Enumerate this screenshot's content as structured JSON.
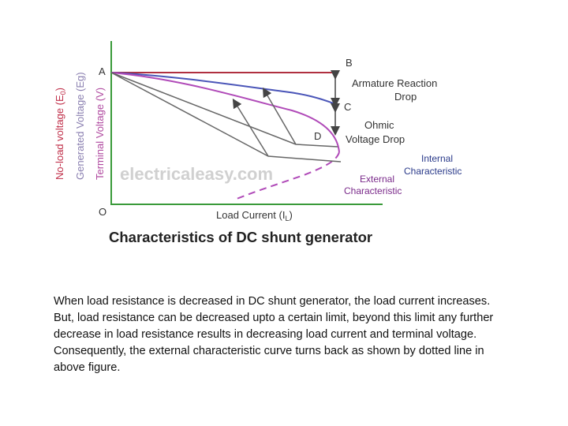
{
  "figure": {
    "title": "Characteristics of DC shunt generator",
    "watermark": "electricaleasy.com",
    "x_axis_label": "Load Current (I",
    "x_axis_sub": "L",
    "x_axis_close": ")",
    "y_axis_labels": [
      {
        "text": "No-load voltage (E",
        "sub": "0",
        "close": ")",
        "color": "#c0304a"
      },
      {
        "text": "Generated Voltage (Eg)",
        "color": "#8a7fb0"
      },
      {
        "text": "Terminal Voltage (V)",
        "color": "#b04aa0"
      }
    ],
    "points": {
      "A": "A",
      "B": "B",
      "C": "C",
      "D": "D",
      "O": "O"
    },
    "annotations": {
      "armature_line1": "Armature Reaction",
      "armature_line2": "Drop",
      "ohmic_line1": "Ohmic",
      "ohmic_line2": "Voltage Drop",
      "internal_line1": "Internal",
      "internal_line2": "Characteristic",
      "external_line1": "External",
      "external_line2": "Characteristic"
    },
    "colors": {
      "axis": "#3a9a3a",
      "no_load": "#b03040",
      "internal": "#4a55b8",
      "external": "#b04ab8",
      "tangent": "#666666",
      "internal_text": "#2a3a8a",
      "external_text": "#7a2a8a"
    }
  },
  "caption": "When load resistance is decreased in DC shunt generator, the load current increases. But, load resistance can be decreased upto a certain limit, beyond this limit any further decrease in load resistance results in decreasing load current and terminal voltage. Consequently, the external characteristic curve turns back as shown by dotted line in above figure."
}
